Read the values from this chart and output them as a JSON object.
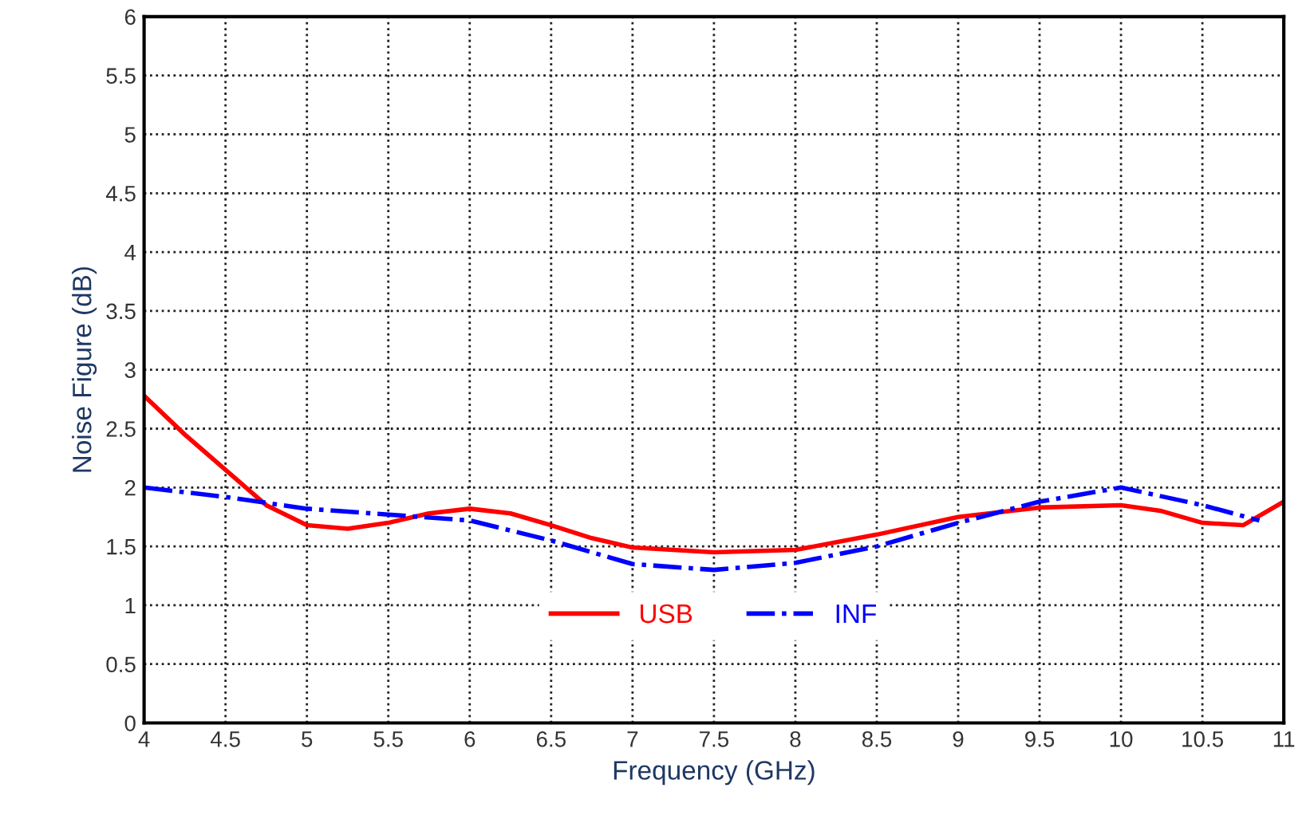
{
  "chart_data": {
    "type": "line",
    "xlabel": "Frequency (GHz)",
    "ylabel": "Noise Figure (dB)",
    "xlim": [
      4,
      11
    ],
    "ylim": [
      0,
      6
    ],
    "xticks": [
      4,
      4.5,
      5,
      5.5,
      6,
      6.5,
      7,
      7.5,
      8,
      8.5,
      9,
      9.5,
      10,
      10.5,
      11
    ],
    "yticks": [
      0,
      0.5,
      1,
      1.5,
      2,
      2.5,
      3,
      3.5,
      4,
      4.5,
      5,
      5.5,
      6
    ],
    "grid": true,
    "legend": "bottom",
    "marker": "none",
    "series": [
      {
        "name": "USB",
        "color": "#ff0000",
        "line_style": "solid",
        "x": [
          4,
          4.25,
          4.5,
          4.75,
          5,
          5.25,
          5.5,
          5.75,
          6,
          6.25,
          6.5,
          6.75,
          7,
          7.5,
          8,
          8.5,
          9,
          9.5,
          10,
          10.25,
          10.5,
          10.75,
          11
        ],
        "values": [
          2.78,
          2.45,
          2.15,
          1.85,
          1.68,
          1.65,
          1.7,
          1.78,
          1.82,
          1.78,
          1.68,
          1.57,
          1.49,
          1.45,
          1.47,
          1.6,
          1.75,
          1.83,
          1.85,
          1.8,
          1.7,
          1.68,
          1.88
        ]
      },
      {
        "name": "INF",
        "color": "#0000ff",
        "line_style": "dashdot",
        "x": [
          4,
          4.5,
          5,
          5.5,
          6,
          6.5,
          7,
          7.5,
          8,
          8.5,
          9,
          9.5,
          10,
          10.5,
          10.85
        ],
        "values": [
          2.0,
          1.92,
          1.82,
          1.77,
          1.72,
          1.55,
          1.35,
          1.3,
          1.36,
          1.5,
          1.7,
          1.88,
          2.0,
          1.85,
          1.72
        ]
      }
    ]
  }
}
